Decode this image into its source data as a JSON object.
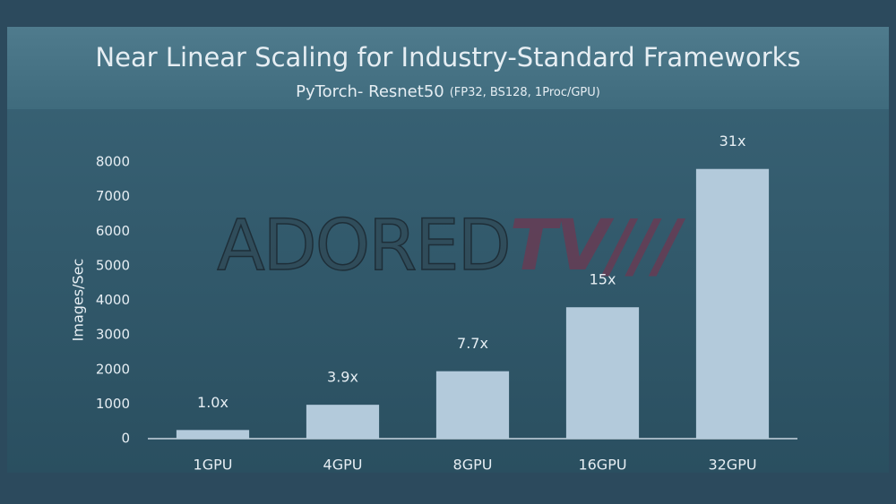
{
  "chart_data": {
    "type": "bar",
    "title": "Near Linear Scaling for Industry-Standard Frameworks",
    "subtitle": "PyTorch- Resnet50",
    "subtitle_note": "(FP32, BS128, 1Proc/GPU)",
    "y_label": "Images/Sec",
    "categories": [
      "1GPU",
      "4GPU",
      "8GPU",
      "16GPU",
      "32GPU"
    ],
    "values": [
      250,
      980,
      1950,
      3800,
      7800
    ],
    "annotations": [
      "1.0x",
      "3.9x",
      "7.7x",
      "15x",
      "31x"
    ],
    "color": "#b3cadb",
    "ylim": [
      0,
      8000
    ],
    "yticks": [
      0,
      1000,
      2000,
      3000,
      4000,
      5000,
      6000,
      7000,
      8000
    ],
    "grid": false,
    "watermark": [
      "ADORED",
      "TV///"
    ]
  }
}
